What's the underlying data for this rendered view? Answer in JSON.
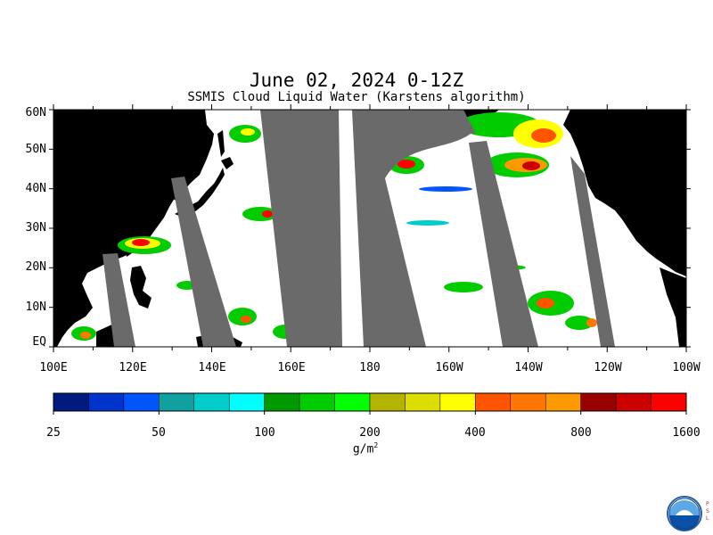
{
  "title": "June 02, 2024 0-12Z",
  "subtitle": "SSMIS Cloud Liquid Water (Karstens algorithm)",
  "latitude_labels": [
    "60N",
    "50N",
    "40N",
    "30N",
    "20N",
    "10N",
    "EQ"
  ],
  "longitude_labels": [
    "100E",
    "120E",
    "140E",
    "160E",
    "180",
    "160W",
    "140W",
    "120W",
    "100W"
  ],
  "colorbar": {
    "tick_labels": [
      "25",
      "50",
      "100",
      "200",
      "400",
      "800",
      "1600"
    ],
    "units_label": "g/m",
    "units_superscript": "2",
    "colors": [
      "#001a80",
      "#0033cc",
      "#0055ff",
      "#11a0a0",
      "#00cccc",
      "#00ffff",
      "#009900",
      "#00cc00",
      "#00ff00",
      "#b3b300",
      "#dddd00",
      "#ffff00",
      "#ff5500",
      "#ff7700",
      "#ff9900",
      "#990000",
      "#cc0000",
      "#ff0000"
    ]
  },
  "map_colors": {
    "land": "#000000",
    "no_data_swath": "#6a6a6a",
    "ocean_clear": "#ffffff"
  },
  "logo": {
    "icon": "noaa-logo",
    "side_text": "PSL"
  }
}
